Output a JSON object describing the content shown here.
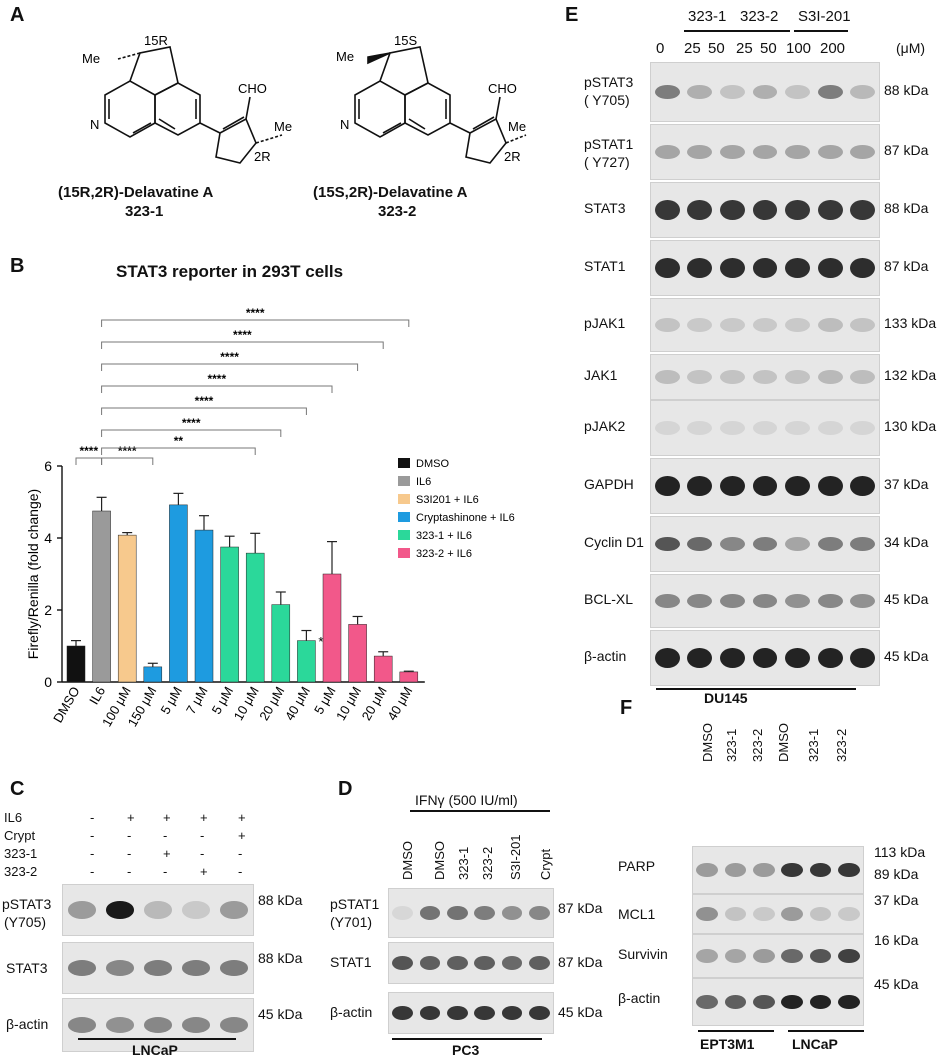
{
  "panels": {
    "A": "A",
    "B": "B",
    "C": "C",
    "D": "D",
    "E": "E",
    "F": "F"
  },
  "panelA": {
    "cmp1": {
      "name": "(15R,2R)-Delavatine A",
      "code": "323-1",
      "c15": "15R",
      "c2": "2R",
      "me1": "Me",
      "me2": "Me",
      "cho": "CHO",
      "n": "N"
    },
    "cmp2": {
      "name": "(15S,2R)-Delavatine A",
      "code": "323-2",
      "c15": "15S",
      "c2": "2R",
      "me1": "Me",
      "me2": "Me",
      "cho": "CHO",
      "n": "N"
    }
  },
  "chart_data": {
    "type": "bar",
    "title": "STAT3 reporter in 293T cells",
    "ylabel": "Firefly/Renilla (fold change)",
    "ylim": [
      0,
      6
    ],
    "yticks": [
      "0",
      "2",
      "4",
      "6"
    ],
    "categories": [
      "DMSO",
      "IL6",
      "100 μM",
      "150 μM",
      "5 μM",
      "7 μM",
      "5 μM",
      "10 μM",
      "20 μM",
      "40 μM",
      "5 μM",
      "10 μM",
      "20 μM",
      "40 μM"
    ],
    "values": [
      1.0,
      4.75,
      4.08,
      0.42,
      4.92,
      4.22,
      3.75,
      3.58,
      2.15,
      1.15,
      3.0,
      1.6,
      0.72,
      0.28
    ],
    "errors": [
      0.15,
      0.38,
      0.07,
      0.1,
      0.32,
      0.4,
      0.3,
      0.55,
      0.35,
      0.28,
      0.9,
      0.22,
      0.12,
      0.02
    ],
    "colors": [
      "#111111",
      "#9a9a9a",
      "#f7c98d",
      "#1e9be0",
      "#1e9be0",
      "#1e9be0",
      "#2bd89a",
      "#2bd89a",
      "#2bd89a",
      "#2bd89a",
      "#f2588a",
      "#f2588a",
      "#f2588a",
      "#f2588a"
    ],
    "legend": [
      {
        "name": "DMSO",
        "color": "#111111"
      },
      {
        "name": "IL6",
        "color": "#9a9a9a"
      },
      {
        "name": "S3I201 + IL6",
        "color": "#f7c98d"
      },
      {
        "name": "Cryptashinone + IL6",
        "color": "#1e9be0"
      },
      {
        "name": "323-1 + IL6",
        "color": "#2bd89a"
      },
      {
        "name": "323-2 + IL6",
        "color": "#f2588a"
      }
    ],
    "significance": [
      {
        "from": 0,
        "to": 1,
        "label": "****"
      },
      {
        "from": 1,
        "to": 3,
        "label": "****"
      },
      {
        "from": 1,
        "to": 7,
        "label": "**"
      },
      {
        "from": 1,
        "to": 8,
        "label": "****"
      },
      {
        "from": 1,
        "to": 9,
        "label": "****"
      },
      {
        "from": 1,
        "to": 10,
        "label": "****"
      },
      {
        "from": 1,
        "to": 11,
        "label": "****"
      },
      {
        "from": 1,
        "to": 12,
        "label": "****"
      },
      {
        "from": 1,
        "to": 13,
        "label": "****"
      }
    ],
    "star_label": "*"
  },
  "panelC": {
    "rows": [
      {
        "label": "IL6",
        "marks": [
          "-",
          "+",
          "+",
          "+",
          "+"
        ]
      },
      {
        "label": "Crypt",
        "marks": [
          "-",
          "-",
          "-",
          "-",
          "+"
        ]
      },
      {
        "label": "323-1",
        "marks": [
          "-",
          "-",
          "+",
          "-",
          "-"
        ]
      },
      {
        "label": "323-2",
        "marks": [
          "-",
          "-",
          "-",
          "+",
          "-"
        ]
      }
    ],
    "blots": [
      {
        "label": "pSTAT3\n(Y705)",
        "l1": "pSTAT3",
        "l2": "(Y705)",
        "kda": "88 kDa",
        "intensity": [
          0.35,
          1.0,
          0.2,
          0.12,
          0.35
        ]
      },
      {
        "label": "STAT3",
        "kda": "88 kDa",
        "intensity": [
          0.5,
          0.45,
          0.5,
          0.5,
          0.5
        ]
      },
      {
        "label": "β-actin",
        "kda": "45 kDa",
        "intensity": [
          0.45,
          0.4,
          0.45,
          0.45,
          0.45
        ]
      }
    ],
    "cell": "LNCaP"
  },
  "panelD": {
    "treatment": "IFNγ (500 IU/ml)",
    "lanes": [
      "DMSO",
      "DMSO",
      "323-1",
      "323-2",
      "S3I-201",
      "Crypt"
    ],
    "blots": [
      {
        "l1": "pSTAT1",
        "l2": "(Y701)",
        "kda": "87 kDa",
        "intensity": [
          0.05,
          0.55,
          0.55,
          0.5,
          0.4,
          0.45
        ]
      },
      {
        "l1": "STAT1",
        "kda": "87 kDa",
        "intensity": [
          0.7,
          0.65,
          0.65,
          0.65,
          0.6,
          0.65
        ]
      },
      {
        "l1": "β-actin",
        "kda": "45 kDa",
        "intensity": [
          0.85,
          0.85,
          0.85,
          0.85,
          0.85,
          0.85
        ]
      }
    ],
    "cell": "PC3"
  },
  "panelE": {
    "groups": [
      "323-1",
      "323-2",
      "S3I-201"
    ],
    "conc": [
      "0",
      "25",
      "50",
      "25",
      "50",
      "100",
      "200"
    ],
    "unit": "(μM)",
    "blots": [
      {
        "l1": "pSTAT3",
        "l2": "( Y705)",
        "kda": "88 kDa",
        "intensity": [
          0.5,
          0.25,
          0.15,
          0.25,
          0.15,
          0.5,
          0.2
        ]
      },
      {
        "l1": "pSTAT1",
        "l2": "( Y727)",
        "kda": "87 kDa",
        "intensity": [
          0.3,
          0.3,
          0.3,
          0.3,
          0.3,
          0.3,
          0.3
        ]
      },
      {
        "l1": "STAT3",
        "kda": "88 kDa",
        "intensity": [
          0.85,
          0.85,
          0.85,
          0.85,
          0.85,
          0.85,
          0.85
        ]
      },
      {
        "l1": "STAT1",
        "kda": "87 kDa",
        "intensity": [
          0.9,
          0.9,
          0.9,
          0.9,
          0.9,
          0.9,
          0.9
        ]
      },
      {
        "l1": "pJAK1",
        "kda": "133 kDa",
        "intensity": [
          0.15,
          0.12,
          0.12,
          0.12,
          0.12,
          0.18,
          0.15
        ]
      },
      {
        "l1": "JAK1",
        "kda": "132 kDa",
        "intensity": [
          0.18,
          0.15,
          0.15,
          0.15,
          0.15,
          0.2,
          0.18
        ]
      },
      {
        "l1": "pJAK2",
        "kda": "130 kDa",
        "intensity": [
          0.06,
          0.06,
          0.06,
          0.06,
          0.06,
          0.06,
          0.06
        ]
      },
      {
        "l1": "GAPDH",
        "kda": "37 kDa",
        "intensity": [
          0.95,
          0.95,
          0.95,
          0.95,
          0.95,
          0.95,
          0.95
        ]
      },
      {
        "l1": "Cyclin D1",
        "kda": "34 kDa",
        "intensity": [
          0.7,
          0.6,
          0.45,
          0.5,
          0.3,
          0.5,
          0.5
        ]
      },
      {
        "l1": "BCL-XL",
        "kda": "45 kDa",
        "intensity": [
          0.45,
          0.45,
          0.45,
          0.45,
          0.4,
          0.45,
          0.4
        ]
      },
      {
        "l1": "β-actin",
        "kda": "45 kDa",
        "intensity": [
          0.95,
          0.95,
          0.95,
          0.95,
          0.95,
          0.95,
          0.95
        ]
      }
    ],
    "cell": "DU145"
  },
  "panelF": {
    "lanes": [
      "DMSO",
      "323-1",
      "323-2",
      "DMSO",
      "323-1",
      "323-2"
    ],
    "blots": [
      {
        "l1": "PARP",
        "kda1": "113 kDa",
        "kda2": "89 kDa",
        "intensity": [
          0.35,
          0.35,
          0.35,
          0.85,
          0.85,
          0.85
        ]
      },
      {
        "l1": "MCL1",
        "kda1": "37 kDa",
        "intensity": [
          0.4,
          0.15,
          0.12,
          0.35,
          0.15,
          0.12
        ]
      },
      {
        "l1": "Survivin",
        "kda1": "16 kDa",
        "intensity": [
          0.3,
          0.3,
          0.35,
          0.6,
          0.7,
          0.8
        ]
      },
      {
        "l1": "β-actin",
        "kda1": "45 kDa",
        "intensity": [
          0.6,
          0.65,
          0.7,
          0.95,
          0.95,
          0.95
        ]
      }
    ],
    "cells": [
      "EPT3M1",
      "LNCaP"
    ]
  }
}
